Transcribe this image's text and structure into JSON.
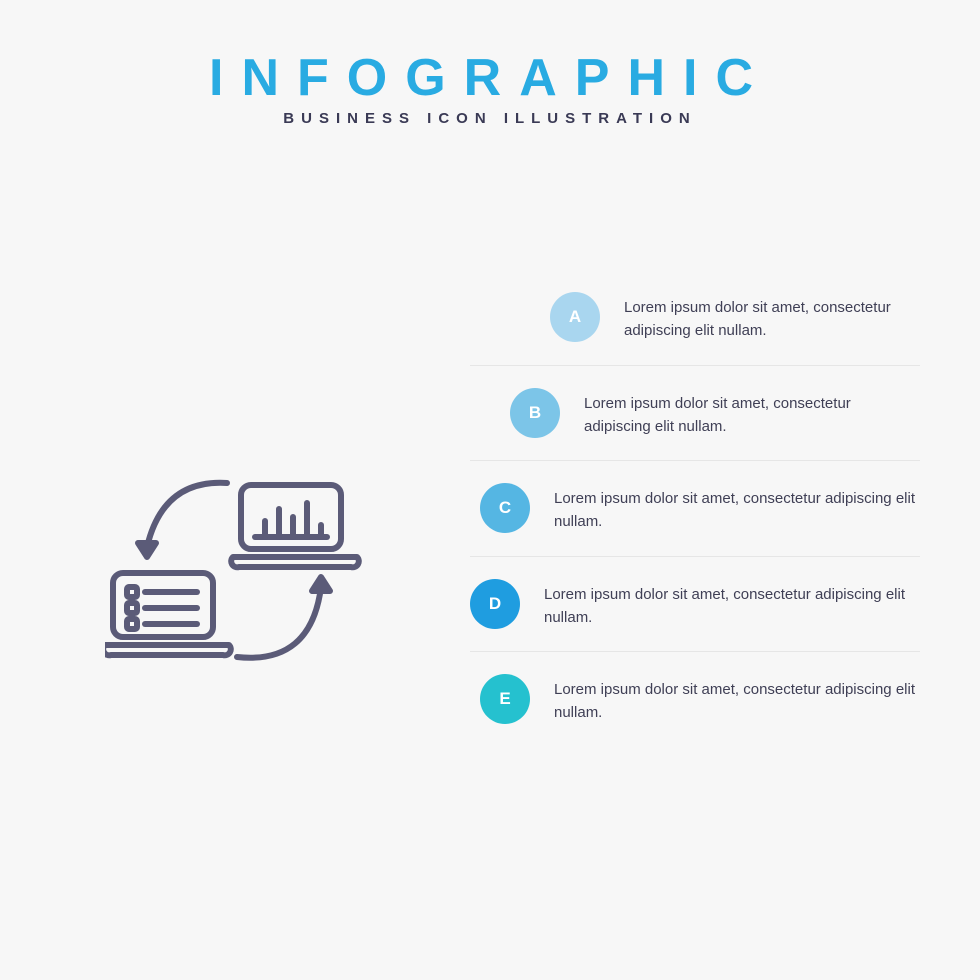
{
  "header": {
    "title": "INFOGRAPHIC",
    "title_color": "#29abe2",
    "subtitle": "BUSINESS ICON ILLUSTRATION",
    "subtitle_color": "#3a3a55"
  },
  "background_color": "#f7f7f7",
  "hero_icon": {
    "name": "laptop-sync-icon",
    "stroke_color": "#5b5b78",
    "stroke_width": 6
  },
  "steps": [
    {
      "letter": "A",
      "badge_color": "#a9d6ef",
      "offset_class": "step-0",
      "text": "Lorem ipsum dolor sit amet, consectetur adipiscing elit nullam."
    },
    {
      "letter": "B",
      "badge_color": "#7cc5e8",
      "offset_class": "step-1",
      "text": "Lorem ipsum dolor sit amet, consectetur adipiscing elit nullam."
    },
    {
      "letter": "C",
      "badge_color": "#55b6e3",
      "offset_class": "step-2",
      "text": "Lorem ipsum dolor sit amet, consectetur adipiscing elit nullam."
    },
    {
      "letter": "D",
      "badge_color": "#1f9de0",
      "offset_class": "step-3",
      "text": "Lorem ipsum dolor sit amet, consectetur adipiscing elit nullam."
    },
    {
      "letter": "E",
      "badge_color": "#25c1cf",
      "offset_class": "step-4",
      "text": "Lorem ipsum dolor sit amet, consectetur adipiscing elit nullam."
    }
  ],
  "step_text_color": "#3f3f55",
  "step_divider_color": "#e6e6e6"
}
